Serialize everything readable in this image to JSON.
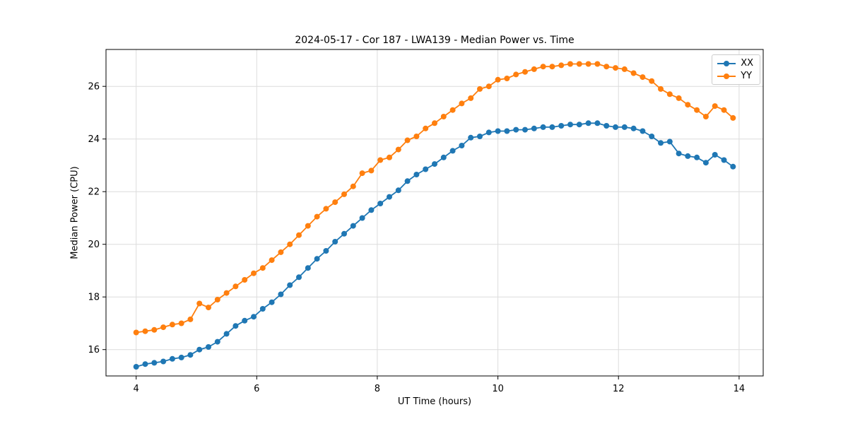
{
  "chart_data": {
    "type": "line",
    "title": "2024-05-17 - Cor 187 - LWA139 - Median Power vs. Time",
    "xlabel": "UT Time (hours)",
    "ylabel": "Median Power (CPU)",
    "xlim": [
      3.5,
      14.4
    ],
    "ylim": [
      15.0,
      27.4
    ],
    "xticks": [
      4,
      6,
      8,
      10,
      12,
      14
    ],
    "yticks": [
      16,
      18,
      20,
      22,
      24,
      26
    ],
    "grid": true,
    "legend_position": "upper right",
    "grid_color": "#dcdcdc",
    "x": [
      4.0,
      4.15,
      4.3,
      4.45,
      4.6,
      4.75,
      4.9,
      5.05,
      5.2,
      5.35,
      5.5,
      5.65,
      5.8,
      5.95,
      6.1,
      6.25,
      6.4,
      6.55,
      6.7,
      6.85,
      7.0,
      7.15,
      7.3,
      7.45,
      7.6,
      7.75,
      7.9,
      8.05,
      8.2,
      8.35,
      8.5,
      8.65,
      8.8,
      8.95,
      9.1,
      9.25,
      9.4,
      9.55,
      9.7,
      9.85,
      10.0,
      10.15,
      10.3,
      10.45,
      10.6,
      10.75,
      10.9,
      11.05,
      11.2,
      11.35,
      11.5,
      11.65,
      11.8,
      11.95,
      12.1,
      12.25,
      12.4,
      12.55,
      12.7,
      12.85,
      13.0,
      13.15,
      13.3,
      13.45,
      13.6,
      13.75,
      13.9
    ],
    "series": [
      {
        "name": "XX",
        "color": "#1f77b4",
        "values": [
          15.35,
          15.45,
          15.5,
          15.55,
          15.65,
          15.7,
          15.8,
          16.0,
          16.1,
          16.3,
          16.6,
          16.9,
          17.1,
          17.25,
          17.55,
          17.8,
          18.1,
          18.45,
          18.75,
          19.1,
          19.45,
          19.75,
          20.1,
          20.4,
          20.7,
          21.0,
          21.3,
          21.55,
          21.8,
          22.05,
          22.4,
          22.65,
          22.85,
          23.05,
          23.3,
          23.55,
          23.75,
          24.05,
          24.1,
          24.25,
          24.3,
          24.3,
          24.35,
          24.35,
          24.4,
          24.45,
          24.45,
          24.5,
          24.55,
          24.55,
          24.6,
          24.6,
          24.5,
          24.45,
          24.45,
          24.4,
          24.3,
          24.1,
          23.85,
          23.9,
          23.45,
          23.35,
          23.3,
          23.1,
          23.4,
          23.2,
          22.95
        ]
      },
      {
        "name": "YY",
        "color": "#ff7f0e",
        "values": [
          16.65,
          16.7,
          16.75,
          16.85,
          16.95,
          17.0,
          17.15,
          17.75,
          17.6,
          17.9,
          18.15,
          18.4,
          18.65,
          18.9,
          19.1,
          19.4,
          19.7,
          20.0,
          20.35,
          20.7,
          21.05,
          21.35,
          21.6,
          21.9,
          22.2,
          22.7,
          22.8,
          23.2,
          23.3,
          23.6,
          23.95,
          24.1,
          24.4,
          24.6,
          24.85,
          25.1,
          25.35,
          25.55,
          25.9,
          26.0,
          26.25,
          26.3,
          26.45,
          26.55,
          26.65,
          26.75,
          26.75,
          26.8,
          26.85,
          26.85,
          26.85,
          26.85,
          26.75,
          26.7,
          26.65,
          26.5,
          26.35,
          26.2,
          25.9,
          25.7,
          25.55,
          25.3,
          25.1,
          24.85,
          25.25,
          25.1,
          24.8
        ]
      }
    ]
  }
}
